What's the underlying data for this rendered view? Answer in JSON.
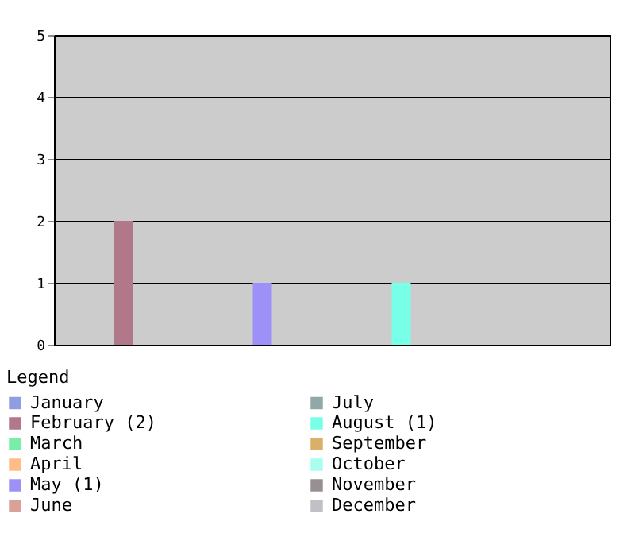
{
  "chart_data": {
    "type": "bar",
    "legend_title": "Legend",
    "categories": [
      null,
      null,
      null,
      null,
      null,
      null,
      null,
      null,
      null,
      null,
      null,
      null
    ],
    "series": [
      {
        "name": "January",
        "color": "#8e9ee0",
        "values": [
          0,
          null,
          null,
          null,
          null,
          null,
          null,
          null,
          null,
          null,
          null,
          null
        ]
      },
      {
        "name": "February (2)",
        "color": "#b07888",
        "values": [
          null,
          2,
          null,
          null,
          null,
          null,
          null,
          null,
          null,
          null,
          null,
          null
        ]
      },
      {
        "name": "March",
        "color": "#78eeaa",
        "values": [
          null,
          null,
          0,
          null,
          null,
          null,
          null,
          null,
          null,
          null,
          null,
          null
        ]
      },
      {
        "name": "April",
        "color": "#ffbb88",
        "values": [
          null,
          null,
          null,
          0,
          null,
          null,
          null,
          null,
          null,
          null,
          null,
          null
        ]
      },
      {
        "name": "May (1)",
        "color": "#9d90f6",
        "values": [
          null,
          null,
          null,
          null,
          1,
          null,
          null,
          null,
          null,
          null,
          null,
          null
        ]
      },
      {
        "name": "June",
        "color": "#d8a298",
        "values": [
          null,
          null,
          null,
          null,
          null,
          0,
          null,
          null,
          null,
          null,
          null,
          null
        ]
      },
      {
        "name": "July",
        "color": "#90a8a8",
        "values": [
          null,
          null,
          null,
          null,
          null,
          null,
          0,
          null,
          null,
          null,
          null,
          null
        ]
      },
      {
        "name": "August (1)",
        "color": "#78ffe8",
        "values": [
          null,
          null,
          null,
          null,
          null,
          null,
          null,
          1,
          null,
          null,
          null,
          null
        ]
      },
      {
        "name": "September",
        "color": "#d8b068",
        "values": [
          null,
          null,
          null,
          null,
          null,
          null,
          null,
          null,
          0,
          null,
          null,
          null
        ]
      },
      {
        "name": "October",
        "color": "#a8fff0",
        "values": [
          null,
          null,
          null,
          null,
          null,
          null,
          null,
          null,
          null,
          0,
          null,
          null
        ]
      },
      {
        "name": "November",
        "color": "#989090",
        "values": [
          null,
          null,
          null,
          null,
          null,
          null,
          null,
          null,
          null,
          null,
          0,
          null
        ]
      },
      {
        "name": "December",
        "color": "#c0c0c6",
        "values": [
          null,
          null,
          null,
          null,
          null,
          null,
          null,
          null,
          null,
          null,
          null,
          0
        ]
      }
    ],
    "ylim": [
      0,
      5
    ],
    "yticks": [
      0,
      1,
      2,
      3,
      4,
      5
    ],
    "grid": "y",
    "legend": "bottom",
    "tick_labels": "y"
  }
}
